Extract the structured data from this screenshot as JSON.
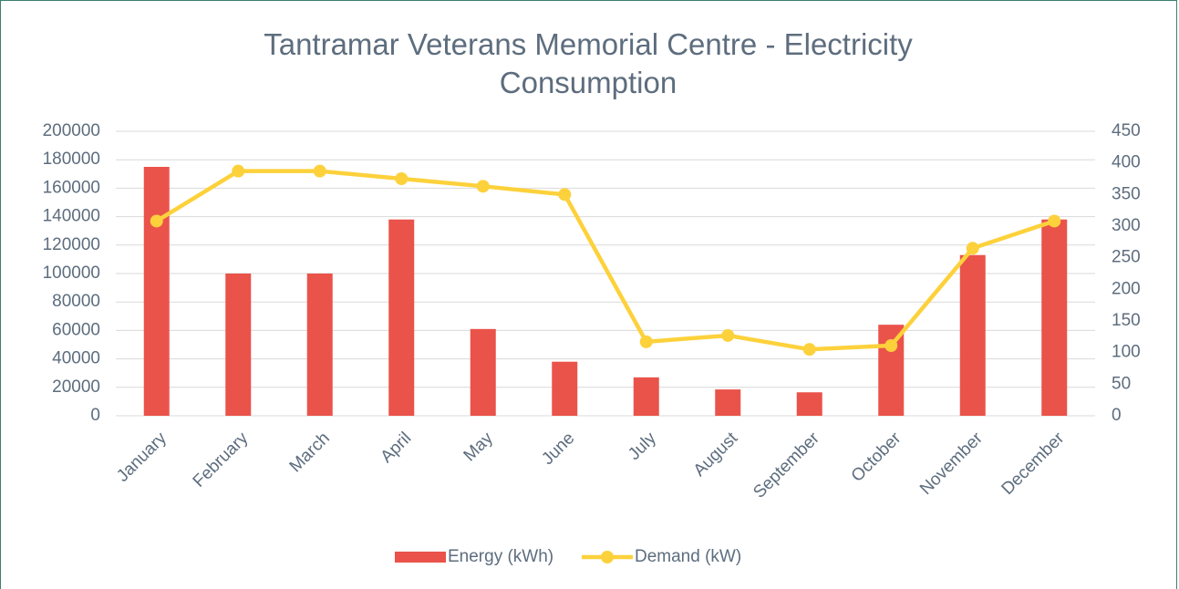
{
  "chart_data": {
    "type": "bar-line",
    "title": "Tantramar Veterans Memorial Centre - Electricity Consumption",
    "categories": [
      "January",
      "February",
      "March",
      "April",
      "May",
      "June",
      "July",
      "August",
      "September",
      "October",
      "November",
      "December"
    ],
    "series": [
      {
        "name": "Energy (kWh)",
        "type": "bar",
        "color": "#ea534a",
        "values": [
          175000,
          100000,
          100000,
          138000,
          61000,
          38000,
          27000,
          18500,
          16500,
          64000,
          113000,
          138000
        ]
      },
      {
        "name": "Demand (kW)",
        "type": "line",
        "axis": "y2",
        "color": "#fdd13b",
        "values": [
          308,
          387,
          387,
          375,
          363,
          350,
          117,
          127,
          105,
          111,
          265,
          308
        ]
      }
    ],
    "ylim": [
      0,
      200000
    ],
    "yticks": [
      0,
      20000,
      40000,
      60000,
      80000,
      100000,
      120000,
      140000,
      160000,
      180000,
      200000
    ],
    "y2lim": [
      0,
      450
    ],
    "y2ticks": [
      0,
      50,
      100,
      150,
      200,
      250,
      300,
      350,
      400,
      450
    ],
    "grid": true,
    "legend": "bottom"
  }
}
